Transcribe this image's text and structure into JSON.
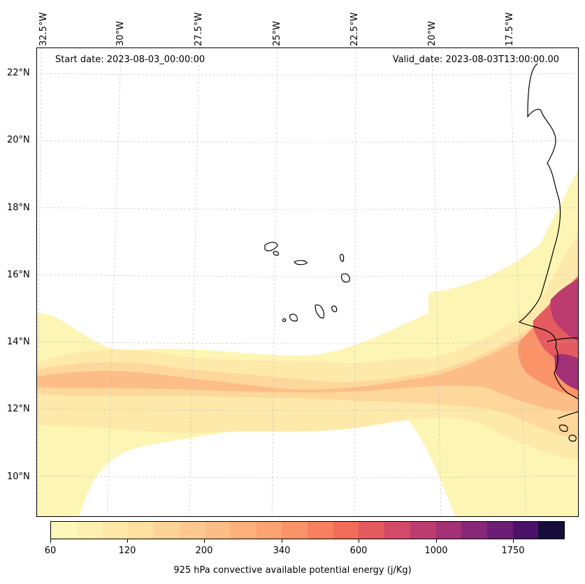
{
  "map": {
    "start_date": "Start date: 2023-08-03_00:00:00",
    "valid_date": "Valid_date: 2023-08-03T13:00:00.00",
    "lon_labels": [
      "32.5°W",
      "30°W",
      "27.5°W",
      "25°W",
      "22.5°W",
      "20°W",
      "17.5°W"
    ],
    "lat_labels": [
      "22°N",
      "20°N",
      "18°N",
      "16°N",
      "14°N",
      "12°N",
      "10°N"
    ],
    "gridlines": true,
    "coastline_color": "#000000",
    "variable": "925 hPa convective available potential energy"
  },
  "colorbar": {
    "title": "925 hPa convective available potential energy (j/Kg)",
    "tick_labels": [
      "60",
      "120",
      "200",
      "340",
      "600",
      "1000",
      "1750"
    ],
    "colors": [
      "#fcf8b9",
      "#fcf0b0",
      "#fde8a8",
      "#fddfa0",
      "#fdd498",
      "#fdc990",
      "#fdbd86",
      "#fdb07c",
      "#fca373",
      "#fb9369",
      "#f7805f",
      "#f06d5a",
      "#e45b5f",
      "#d34a68",
      "#bd3c70",
      "#a33175",
      "#872777",
      "#6c1d74",
      "#4b1168",
      "#160d3a"
    ]
  }
}
